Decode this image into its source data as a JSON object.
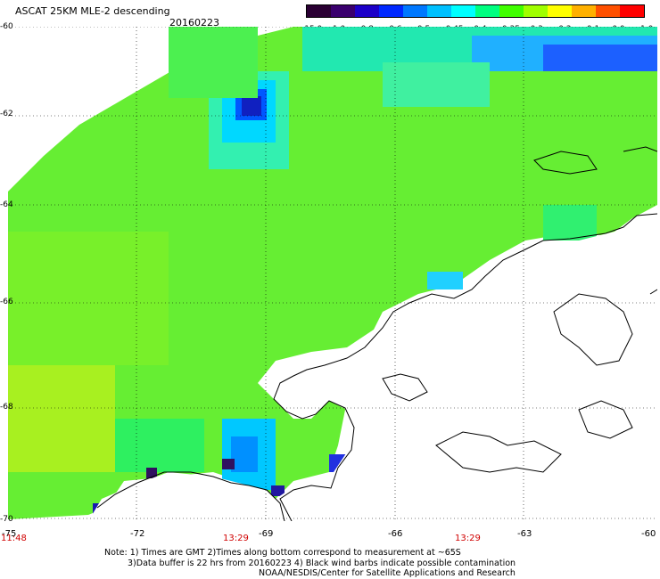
{
  "header": {
    "title": "ASCAT 25KM MLE-2 descending",
    "date": "20160223"
  },
  "colorbar": {
    "tick_labels": [
      "-15.0",
      "-1.0",
      "-0.8",
      "-0.6",
      "-0.5",
      "-0.45",
      "-0.4",
      "-0.35",
      "-0.3",
      "-0.2",
      "-0.1",
      "0.0",
      "1.0"
    ],
    "colors": [
      "#2a0033",
      "#3a006e",
      "#1c00c8",
      "#0028ff",
      "#0078ff",
      "#00c0ff",
      "#00ffff",
      "#00ff80",
      "#40ff00",
      "#a0ff00",
      "#ffff00",
      "#ffb000",
      "#ff5000",
      "#ff0000"
    ]
  },
  "map": {
    "lat_labels": [
      "-60",
      "-62",
      "-64",
      "-66",
      "-68",
      "-70"
    ],
    "lon_labels": [
      "-75",
      "-72",
      "-69",
      "-66",
      "-63",
      "-60"
    ],
    "pass_times": [
      "11:48",
      "13:29",
      "13:29"
    ],
    "land_color": "#ffffff",
    "coastline_color": "#000000",
    "grid_style": "dotted"
  },
  "notes": {
    "line1": "Note: 1) Times are GMT 2)Times along bottom correspond to measurement at ~65S",
    "line2": "3)Data buffer is 22 hrs from 20160223 4) Black wind barbs indicate possible contamination",
    "line3": "NOAA/NESDIS/Center for Satellite Applications and Research"
  }
}
